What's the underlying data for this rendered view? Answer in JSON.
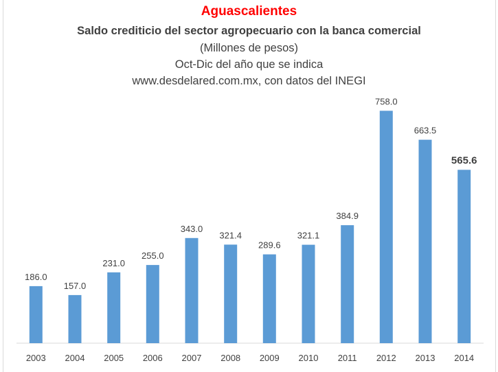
{
  "chart_data": {
    "type": "bar",
    "title": "Aguascalientes",
    "subtitle": "Saldo crediticio del sector agropecuario con la banca comercial",
    "subtitle_lines": [
      "(Millones de pesos)",
      "Oct-Dic del año que se indica",
      "www.desdelared.com.mx, con datos del INEGI"
    ],
    "categories": [
      "2003",
      "2004",
      "2005",
      "2006",
      "2007",
      "2008",
      "2009",
      "2010",
      "2011",
      "2012",
      "2013",
      "2014"
    ],
    "values": [
      186.0,
      157.0,
      231.0,
      255.0,
      343.0,
      321.4,
      289.6,
      321.1,
      384.9,
      758.0,
      663.5,
      565.6
    ],
    "value_labels": [
      "186.0",
      "157.0",
      "231.0",
      "255.0",
      "343.0",
      "321.4",
      "289.6",
      "321.1",
      "384.9",
      "758.0",
      "663.5",
      "565.6"
    ],
    "emphasized_index": 11,
    "ylim": [
      0,
      900
    ],
    "grid": false,
    "legend": "none",
    "colors": {
      "bar": "#5b9bd5",
      "title": "#ff0000",
      "text": "#404040",
      "axis": "#d9d9d9"
    }
  }
}
